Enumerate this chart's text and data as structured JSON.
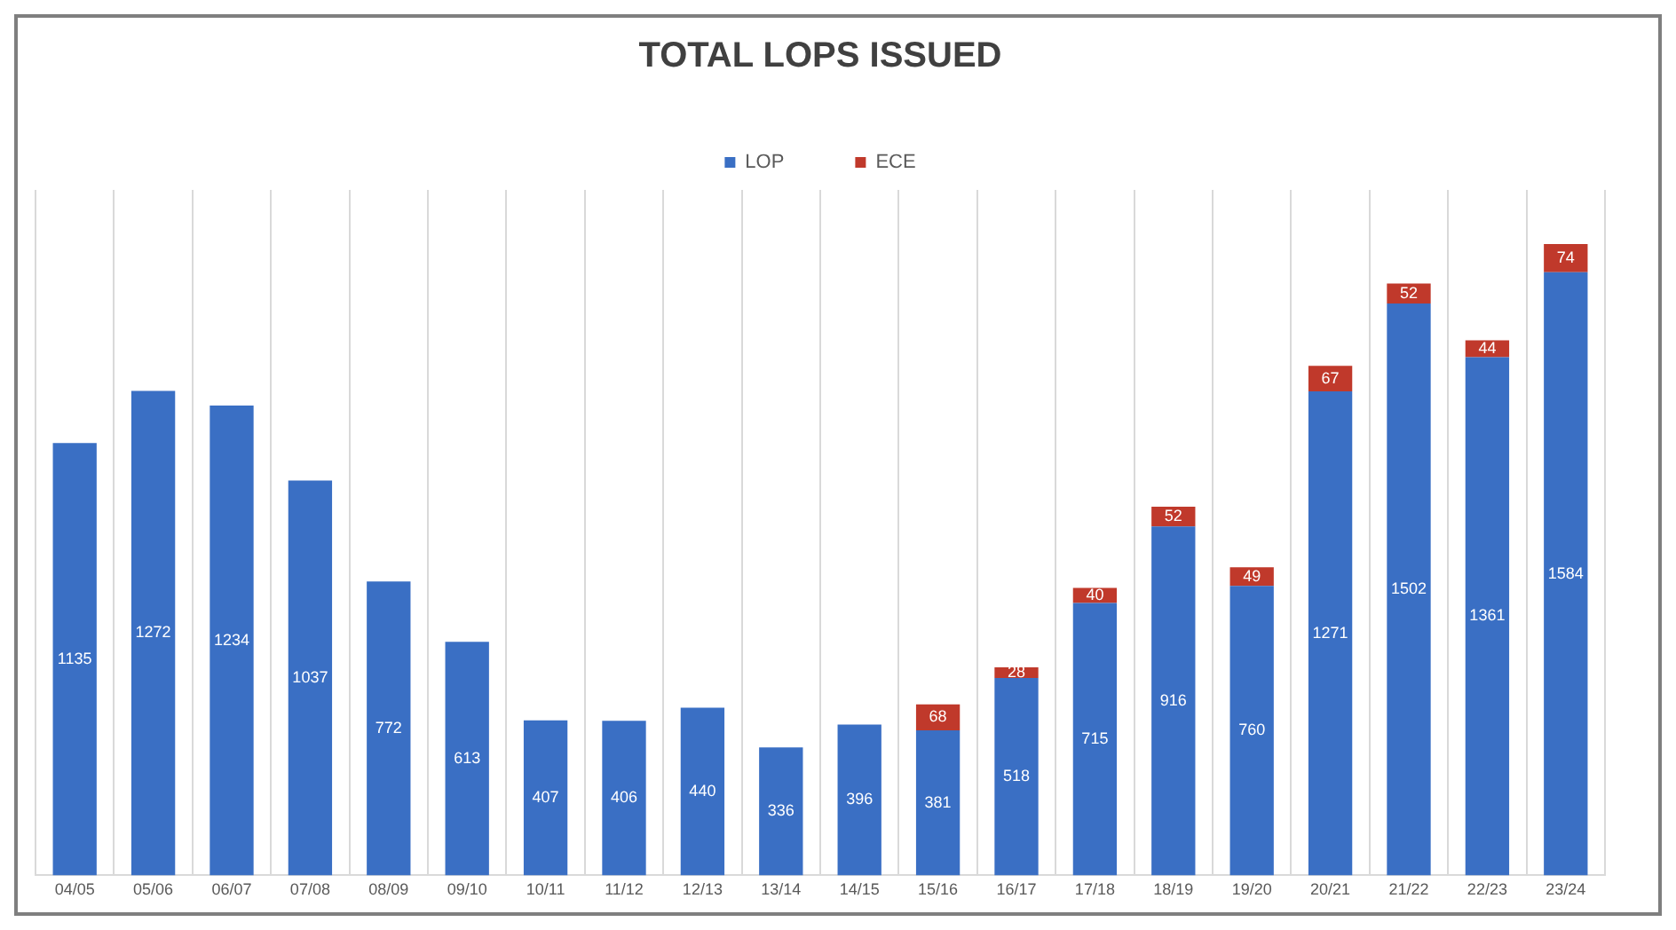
{
  "chart_data": {
    "type": "bar",
    "title": "TOTAL LOPS ISSUED",
    "stacked": true,
    "data_labels": true,
    "legend": "top",
    "grid": "x",
    "categories": [
      "04/05",
      "05/06",
      "06/07",
      "07/08",
      "08/09",
      "09/10",
      "10/11",
      "11/12",
      "12/13",
      "13/14",
      "14/15",
      "15/16",
      "16/17",
      "17/18",
      "18/19",
      "19/20",
      "20/21",
      "21/22",
      "22/23",
      "23/24"
    ],
    "series": [
      {
        "name": "LOP",
        "color": "#3a6fc4",
        "values": [
          1135,
          1272,
          1234,
          1037,
          772,
          613,
          407,
          406,
          440,
          336,
          396,
          381,
          518,
          715,
          916,
          760,
          1271,
          1502,
          1361,
          1584
        ]
      },
      {
        "name": "ECE",
        "color": "#c0392b",
        "values": [
          null,
          null,
          null,
          null,
          null,
          null,
          null,
          null,
          null,
          null,
          null,
          68,
          28,
          40,
          52,
          49,
          67,
          52,
          44,
          74
        ]
      }
    ]
  }
}
